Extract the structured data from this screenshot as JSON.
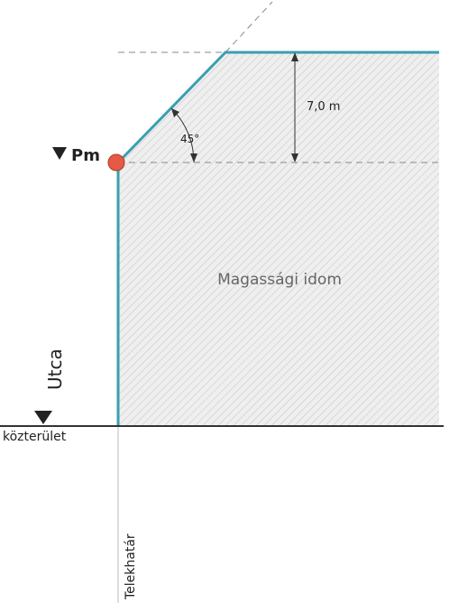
{
  "labels": {
    "height": "7,0 m",
    "angle": "45°",
    "level": "Pm",
    "area": "Magassági idom",
    "street": "Utca",
    "public": "közterület",
    "boundary": "Telekhatár"
  }
}
